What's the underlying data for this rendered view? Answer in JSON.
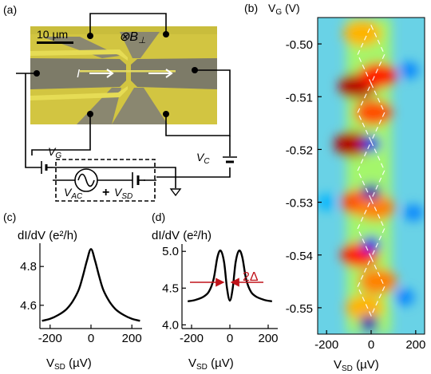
{
  "panels": {
    "a": {
      "label": "(a)",
      "scalebar": "10 µm",
      "field_symbol": "⊗B",
      "field_sub": "⊥",
      "current": "I",
      "vg_main": "V",
      "vg_sub": "G",
      "vc_main": "V",
      "vc_sub": "C",
      "vac_main": "V",
      "vac_sub": "AC",
      "plus": "+",
      "vsd_main": "V",
      "vsd_sub": "SD"
    },
    "b": {
      "label": "(b)",
      "ylabel_main": "V",
      "ylabel_sub": "G",
      "ylabel_unit": " (V)",
      "xlabel_main": "V",
      "xlabel_sub": "SD",
      "xlabel_unit": " (µV)"
    },
    "c": {
      "label": "(c)",
      "ylabel": "dI/dV (e²/h)",
      "xlabel_main": "V",
      "xlabel_sub": "SD",
      "xlabel_unit": " (µV)"
    },
    "d": {
      "label": "(d)",
      "ylabel": "dI/dV (e²/h)",
      "xlabel_main": "V",
      "xlabel_sub": "SD",
      "xlabel_unit": " (µV)",
      "annotation": "2Δ",
      "annotation_color": "#c0141b"
    }
  },
  "chart_data": [
    {
      "panel": "c",
      "type": "line",
      "xlim": [
        -250,
        250
      ],
      "ylim": [
        4.48,
        4.92
      ],
      "xticks": [
        -200,
        0,
        200
      ],
      "xtick_labels": [
        "-200",
        "0",
        "200"
      ],
      "yticks": [
        4.6,
        4.8
      ],
      "ytick_labels": [
        "4.6",
        "4.8"
      ],
      "series": [
        {
          "x": [
            -240,
            -200,
            -160,
            -120,
            -90,
            -60,
            -40,
            -20,
            0,
            20,
            40,
            60,
            90,
            120,
            160,
            200,
            240
          ],
          "y": [
            4.52,
            4.53,
            4.55,
            4.58,
            4.62,
            4.68,
            4.75,
            4.83,
            4.89,
            4.83,
            4.75,
            4.68,
            4.62,
            4.58,
            4.55,
            4.53,
            4.52
          ]
        }
      ]
    },
    {
      "panel": "d",
      "type": "line",
      "xlim": [
        -250,
        250
      ],
      "ylim": [
        3.95,
        5.1
      ],
      "xticks": [
        -200,
        0,
        200
      ],
      "xtick_labels": [
        "-200",
        "0",
        "200"
      ],
      "yticks": [
        4.0,
        4.5,
        5.0
      ],
      "ytick_labels": [
        "4.0",
        "4.5",
        "5.0"
      ],
      "series": [
        {
          "x": [
            -220,
            -180,
            -140,
            -110,
            -85,
            -65,
            -48,
            -30,
            -15,
            0,
            15,
            30,
            48,
            65,
            85,
            110,
            140,
            180,
            220
          ],
          "y": [
            4.32,
            4.34,
            4.38,
            4.45,
            4.62,
            4.92,
            5.01,
            4.85,
            4.5,
            4.33,
            4.5,
            4.85,
            5.01,
            4.92,
            4.62,
            4.45,
            4.38,
            4.34,
            4.32
          ]
        }
      ]
    },
    {
      "panel": "b",
      "type": "heatmap",
      "xlim": [
        -240,
        240
      ],
      "ylim": [
        -0.555,
        -0.495
      ],
      "xticks": [
        -200,
        0,
        200
      ],
      "xtick_labels": [
        "-200",
        "0",
        "200"
      ],
      "yticks": [
        -0.5,
        -0.51,
        -0.52,
        -0.53,
        -0.54,
        -0.55
      ],
      "ytick_labels": [
        "-0.50",
        "-0.51",
        "-0.52",
        "-0.53",
        "-0.54",
        "-0.55"
      ],
      "colormap": "jet",
      "diamond_centers_vg": [
        -0.502,
        -0.513,
        -0.524,
        -0.535,
        -0.546
      ],
      "diamond_halfwidth_vsd": 60,
      "hot_spots": [
        {
          "vsd": -40,
          "vg": -0.498,
          "level": 0.7
        },
        {
          "vsd": -60,
          "vg": -0.508,
          "level": 0.95
        },
        {
          "vsd": 30,
          "vg": -0.506,
          "level": 0.85
        },
        {
          "vsd": -80,
          "vg": -0.519,
          "level": 0.95
        },
        {
          "vsd": 10,
          "vg": -0.513,
          "level": 0.8
        },
        {
          "vsd": -50,
          "vg": -0.53,
          "level": 0.8
        },
        {
          "vsd": 20,
          "vg": -0.531,
          "level": 0.75
        },
        {
          "vsd": -50,
          "vg": -0.54,
          "level": 0.85
        },
        {
          "vsd": 30,
          "vg": -0.545,
          "level": 0.75
        },
        {
          "vsd": -30,
          "vg": -0.55,
          "level": 0.7
        }
      ],
      "cold_spots": [
        {
          "vsd": 0,
          "vg": -0.519,
          "level": 0.1
        },
        {
          "vsd": 0,
          "vg": -0.528,
          "level": 0.05
        },
        {
          "vsd": 0,
          "vg": -0.538,
          "level": 0.1
        },
        {
          "vsd": -10,
          "vg": -0.553,
          "level": 0.05
        },
        {
          "vsd": 170,
          "vg": -0.505,
          "level": 0.25
        },
        {
          "vsd": 190,
          "vg": -0.532,
          "level": 0.25
        },
        {
          "vsd": -200,
          "vg": -0.53,
          "level": 0.3
        },
        {
          "vsd": 150,
          "vg": -0.548,
          "level": 0.25
        }
      ]
    }
  ]
}
